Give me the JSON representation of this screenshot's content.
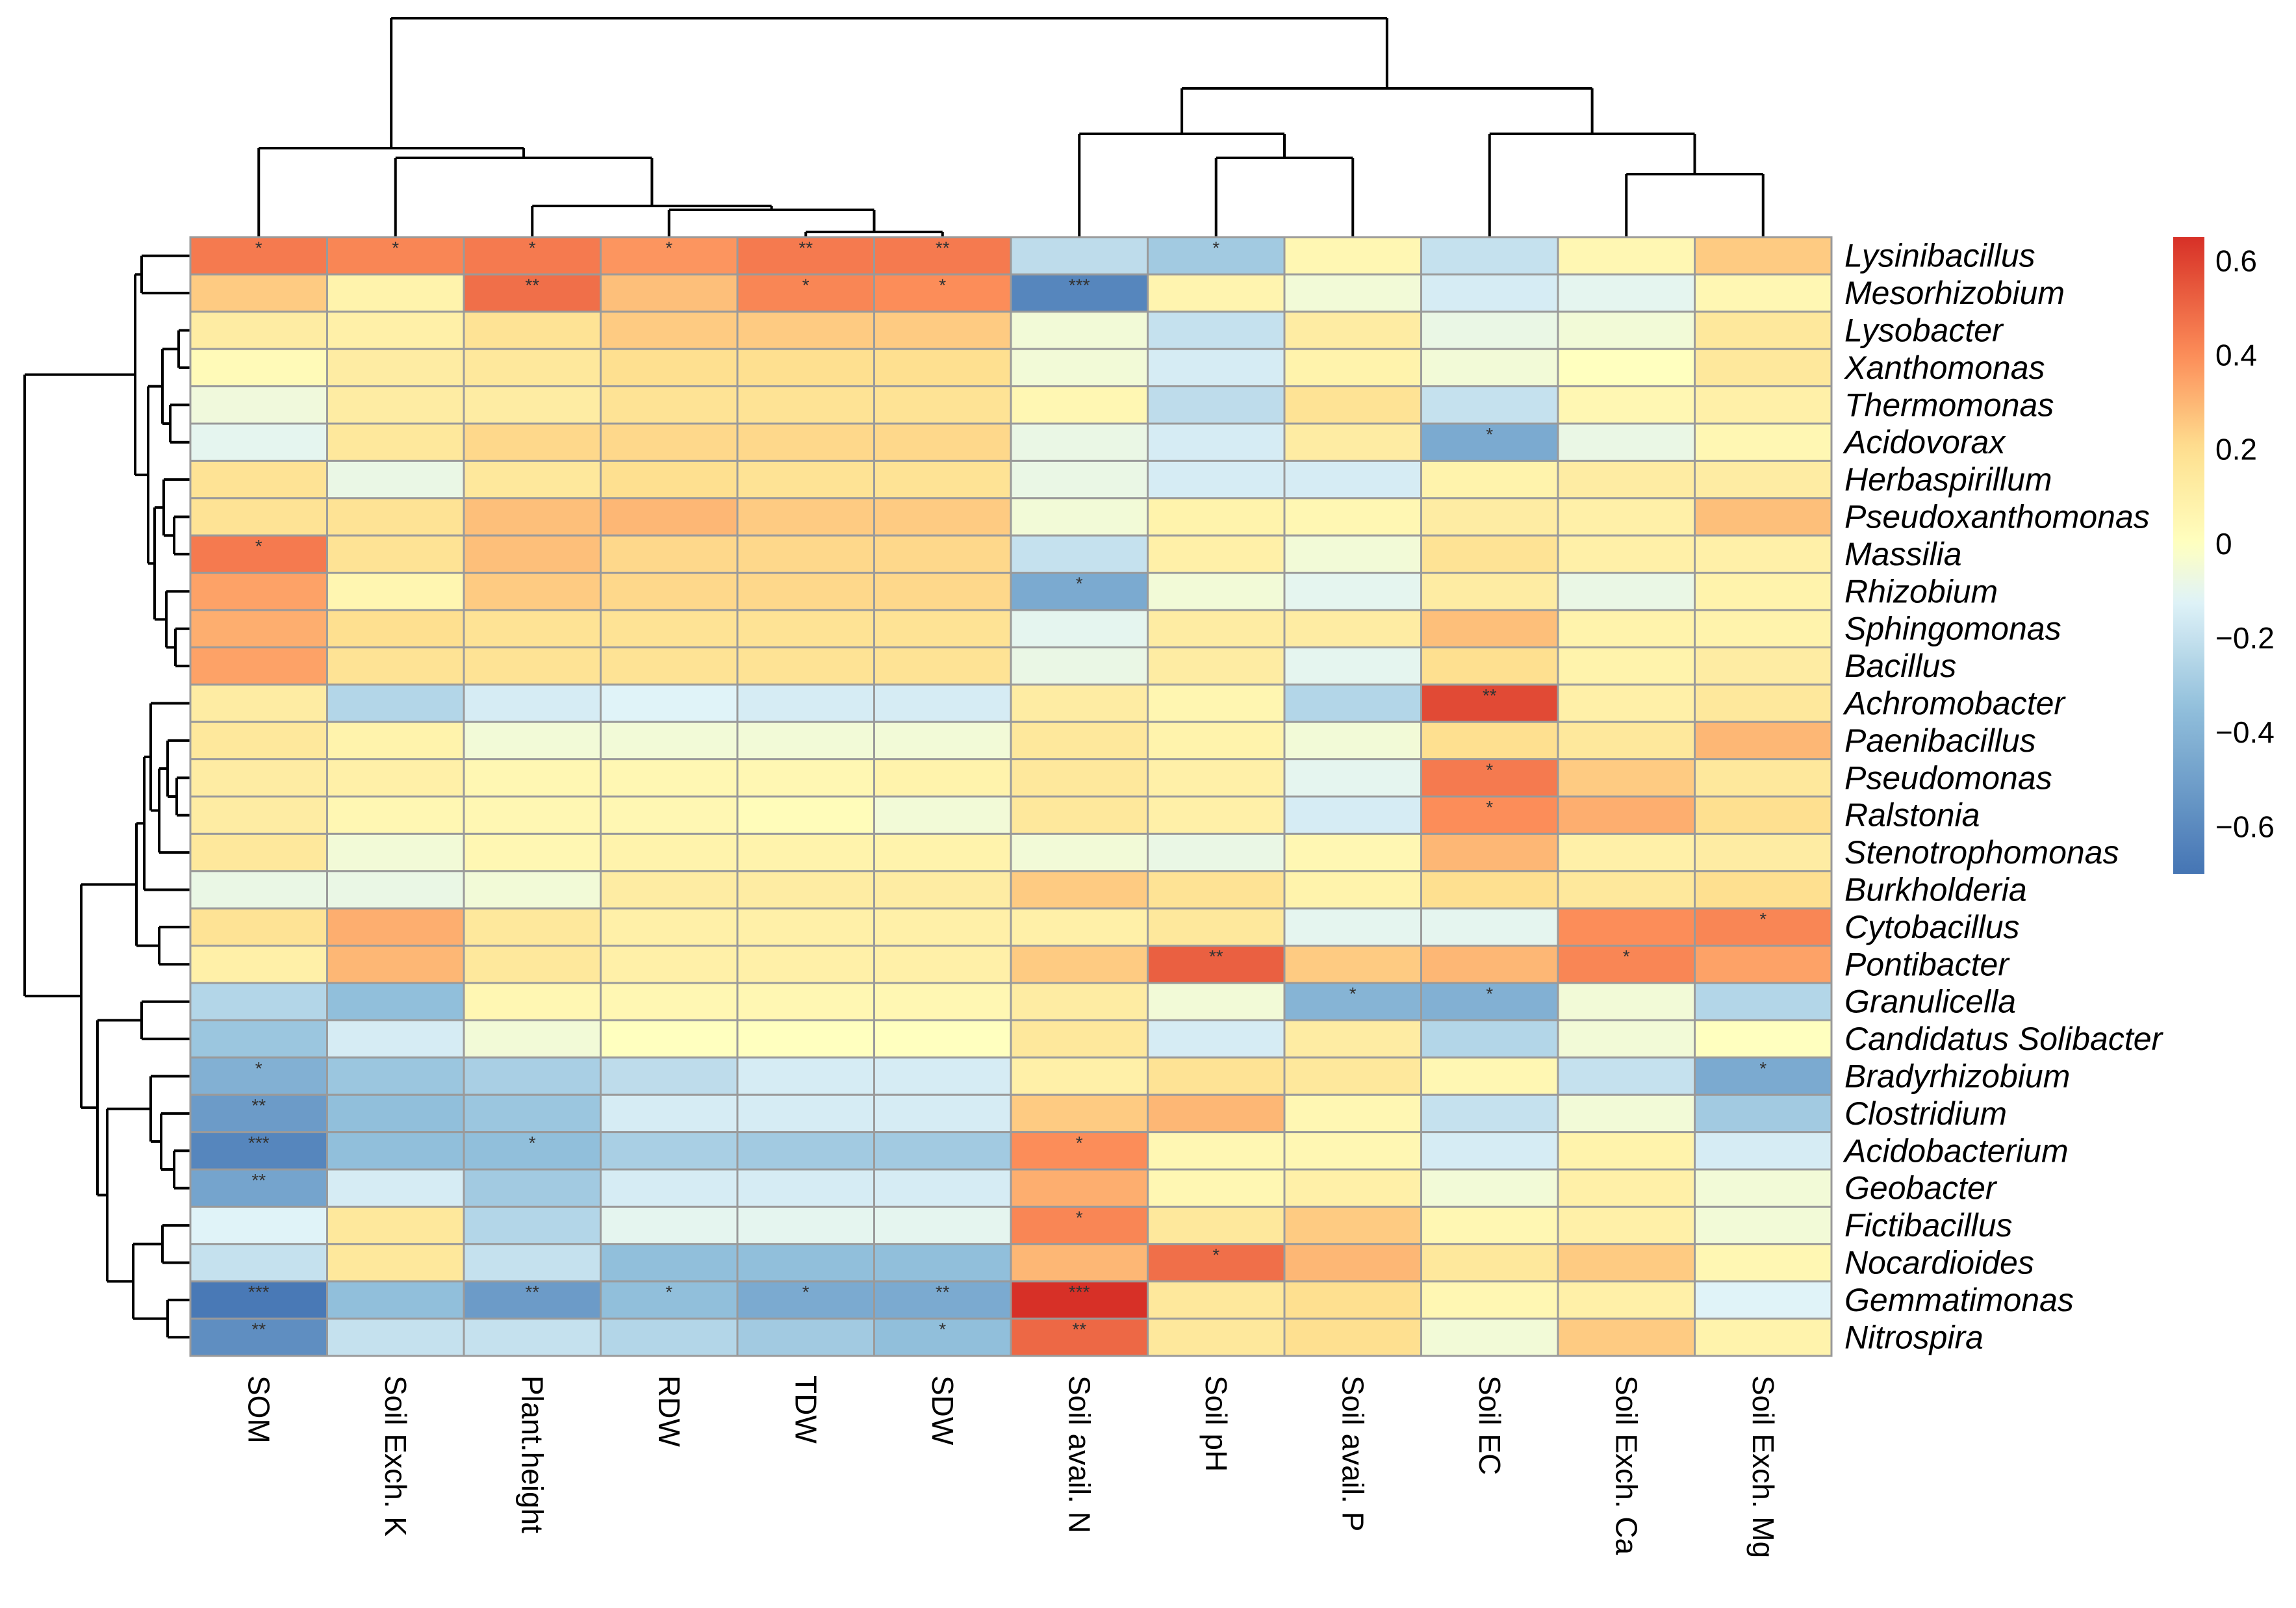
{
  "chart_data": {
    "type": "heatmap",
    "title": "",
    "columns": [
      "SOM",
      "Soil Exch. K",
      "Plant.height",
      "RDW",
      "TDW",
      "SDW",
      "Soil avail. N",
      "Soil pH",
      "Soil avail. P",
      "Soil EC",
      "Soil Exch. Ca",
      "Soil Exch. Mg"
    ],
    "rows": [
      "Lysinibacillus",
      "Mesorhizobium",
      "Lysobacter",
      "Xanthomonas",
      "Thermomonas",
      "Acidovorax",
      "Herbaspirillum",
      "Pseudoxanthomonas",
      "Massilia",
      "Rhizobium",
      "Sphingomonas",
      "Bacillus",
      "Achromobacter",
      "Paenibacillus",
      "Pseudomonas",
      "Ralstonia",
      "Stenotrophomonas",
      "Burkholderia",
      "Cytobacillus",
      "Pontibacter",
      "Granulicella",
      "Candidatus Solibacter",
      "Bradyrhizobium",
      "Clostridium",
      "Acidobacterium",
      "Geobacter",
      "Fictibacillus",
      "Nocardioides",
      "Gemmatimonas",
      "Nitrospira"
    ],
    "values": [
      [
        0.45,
        0.42,
        0.45,
        0.38,
        0.45,
        0.45,
        -0.22,
        -0.3,
        0.05,
        -0.2,
        0.05,
        0.25
      ],
      [
        0.25,
        0.08,
        0.48,
        0.28,
        0.42,
        0.4,
        -0.62,
        0.07,
        -0.05,
        -0.15,
        -0.1,
        0.05
      ],
      [
        0.12,
        0.1,
        0.18,
        0.25,
        0.25,
        0.25,
        -0.05,
        -0.2,
        0.12,
        -0.08,
        -0.05,
        0.15
      ],
      [
        0.03,
        0.12,
        0.15,
        0.2,
        0.2,
        0.2,
        -0.05,
        -0.15,
        0.08,
        -0.05,
        0.0,
        0.15
      ],
      [
        -0.06,
        0.12,
        0.12,
        0.18,
        0.18,
        0.18,
        0.05,
        -0.22,
        0.18,
        -0.2,
        0.05,
        0.1
      ],
      [
        -0.1,
        0.15,
        0.22,
        0.22,
        0.22,
        0.22,
        -0.08,
        -0.15,
        0.12,
        -0.45,
        -0.08,
        0.05
      ],
      [
        0.18,
        -0.08,
        0.15,
        0.2,
        0.18,
        0.18,
        -0.08,
        -0.15,
        -0.15,
        0.08,
        0.12,
        0.12
      ],
      [
        0.18,
        0.18,
        0.28,
        0.3,
        0.25,
        0.25,
        -0.05,
        0.08,
        0.05,
        0.12,
        0.1,
        0.28
      ],
      [
        0.45,
        0.18,
        0.28,
        0.22,
        0.22,
        0.22,
        -0.2,
        0.1,
        -0.05,
        0.18,
        0.1,
        0.1
      ],
      [
        0.35,
        0.06,
        0.25,
        0.22,
        0.22,
        0.22,
        -0.45,
        -0.05,
        -0.1,
        0.12,
        -0.08,
        0.08
      ],
      [
        0.32,
        0.2,
        0.18,
        0.18,
        0.18,
        0.18,
        -0.1,
        0.12,
        0.12,
        0.28,
        0.08,
        0.08
      ],
      [
        0.35,
        0.18,
        0.18,
        0.18,
        0.18,
        0.18,
        -0.08,
        0.12,
        -0.1,
        0.2,
        0.08,
        0.12
      ],
      [
        0.12,
        -0.25,
        -0.15,
        -0.12,
        -0.15,
        -0.15,
        0.12,
        0.06,
        -0.25,
        0.58,
        0.1,
        0.15
      ],
      [
        0.15,
        0.08,
        -0.05,
        -0.05,
        -0.05,
        -0.05,
        0.15,
        0.08,
        -0.05,
        0.2,
        0.15,
        0.3
      ],
      [
        0.12,
        0.1,
        0.05,
        0.05,
        0.05,
        0.08,
        0.15,
        0.1,
        -0.1,
        0.45,
        0.25,
        0.15
      ],
      [
        0.12,
        0.05,
        0.05,
        0.05,
        0.02,
        -0.05,
        0.15,
        0.1,
        -0.15,
        0.4,
        0.32,
        0.2
      ],
      [
        0.15,
        -0.05,
        0.05,
        0.08,
        0.08,
        0.08,
        -0.05,
        -0.08,
        0.05,
        0.3,
        0.1,
        0.12
      ],
      [
        -0.08,
        -0.08,
        -0.05,
        0.12,
        0.12,
        0.12,
        0.25,
        0.18,
        0.08,
        0.2,
        0.15,
        0.2
      ],
      [
        0.18,
        0.32,
        0.15,
        0.1,
        0.1,
        0.1,
        0.1,
        0.15,
        -0.1,
        -0.1,
        0.4,
        0.42
      ],
      [
        0.1,
        0.3,
        0.15,
        0.1,
        0.1,
        0.1,
        0.25,
        0.52,
        0.25,
        0.3,
        0.42,
        0.35
      ],
      [
        -0.25,
        -0.35,
        0.05,
        0.05,
        0.05,
        0.05,
        0.12,
        -0.05,
        -0.4,
        -0.42,
        -0.05,
        -0.25
      ],
      [
        -0.32,
        -0.15,
        -0.05,
        0.0,
        0.0,
        0.0,
        0.15,
        -0.15,
        0.12,
        -0.25,
        -0.05,
        0.0
      ],
      [
        -0.42,
        -0.32,
        -0.28,
        -0.22,
        -0.15,
        -0.15,
        0.1,
        0.18,
        0.15,
        0.05,
        -0.2,
        -0.45
      ],
      [
        -0.52,
        -0.35,
        -0.32,
        -0.15,
        -0.15,
        -0.15,
        0.25,
        0.3,
        0.05,
        -0.2,
        -0.05,
        -0.3
      ],
      [
        -0.62,
        -0.35,
        -0.35,
        -0.28,
        -0.3,
        -0.3,
        0.4,
        0.05,
        0.05,
        -0.15,
        0.08,
        -0.15
      ],
      [
        -0.48,
        -0.15,
        -0.3,
        -0.15,
        -0.15,
        -0.15,
        0.32,
        0.05,
        0.1,
        -0.05,
        0.1,
        -0.05
      ],
      [
        -0.12,
        0.15,
        -0.25,
        -0.1,
        -0.1,
        -0.1,
        0.42,
        0.15,
        0.25,
        0.05,
        0.1,
        -0.05
      ],
      [
        -0.2,
        0.15,
        -0.2,
        -0.35,
        -0.35,
        -0.35,
        0.3,
        0.48,
        0.3,
        0.15,
        0.25,
        0.05
      ],
      [
        -0.68,
        -0.35,
        -0.52,
        -0.35,
        -0.45,
        -0.45,
        0.65,
        0.15,
        0.2,
        0.05,
        0.1,
        -0.12
      ],
      [
        -0.58,
        -0.2,
        -0.2,
        -0.25,
        -0.3,
        -0.35,
        0.5,
        0.15,
        0.2,
        -0.05,
        0.25,
        0.08
      ]
    ],
    "significance": [
      [
        "*",
        "*",
        "*",
        "*",
        "**",
        "**",
        "",
        "*",
        "",
        "",
        "",
        ""
      ],
      [
        "",
        "",
        "**",
        "",
        "*",
        "*",
        "***",
        "",
        "",
        "",
        "",
        ""
      ],
      [
        "",
        "",
        "",
        "",
        "",
        "",
        "",
        "",
        "",
        "",
        "",
        ""
      ],
      [
        "",
        "",
        "",
        "",
        "",
        "",
        "",
        "",
        "",
        "",
        "",
        ""
      ],
      [
        "",
        "",
        "",
        "",
        "",
        "",
        "",
        "",
        "",
        "",
        "",
        ""
      ],
      [
        "",
        "",
        "",
        "",
        "",
        "",
        "",
        "",
        "",
        "*",
        "",
        ""
      ],
      [
        "",
        "",
        "",
        "",
        "",
        "",
        "",
        "",
        "",
        "",
        "",
        ""
      ],
      [
        "",
        "",
        "",
        "",
        "",
        "",
        "",
        "",
        "",
        "",
        "",
        ""
      ],
      [
        "*",
        "",
        "",
        "",
        "",
        "",
        "",
        "",
        "",
        "",
        "",
        ""
      ],
      [
        "",
        "",
        "",
        "",
        "",
        "",
        "*",
        "",
        "",
        "",
        "",
        ""
      ],
      [
        "",
        "",
        "",
        "",
        "",
        "",
        "",
        "",
        "",
        "",
        "",
        ""
      ],
      [
        "",
        "",
        "",
        "",
        "",
        "",
        "",
        "",
        "",
        "",
        "",
        ""
      ],
      [
        "",
        "",
        "",
        "",
        "",
        "",
        "",
        "",
        "",
        "**",
        "",
        ""
      ],
      [
        "",
        "",
        "",
        "",
        "",
        "",
        "",
        "",
        "",
        "",
        "",
        ""
      ],
      [
        "",
        "",
        "",
        "",
        "",
        "",
        "",
        "",
        "",
        "*",
        "",
        ""
      ],
      [
        "",
        "",
        "",
        "",
        "",
        "",
        "",
        "",
        "",
        "*",
        "",
        ""
      ],
      [
        "",
        "",
        "",
        "",
        "",
        "",
        "",
        "",
        "",
        "",
        "",
        ""
      ],
      [
        "",
        "",
        "",
        "",
        "",
        "",
        "",
        "",
        "",
        "",
        "",
        ""
      ],
      [
        "",
        "",
        "",
        "",
        "",
        "",
        "",
        "",
        "",
        "",
        "",
        "*"
      ],
      [
        "",
        "",
        "",
        "",
        "",
        "",
        "",
        "**",
        "",
        "",
        "*",
        ""
      ],
      [
        "",
        "",
        "",
        "",
        "",
        "",
        "",
        "",
        "*",
        "*",
        "",
        ""
      ],
      [
        "",
        "",
        "",
        "",
        "",
        "",
        "",
        "",
        "",
        "",
        "",
        ""
      ],
      [
        "*",
        "",
        "",
        "",
        "",
        "",
        "",
        "",
        "",
        "",
        "",
        "*"
      ],
      [
        "**",
        "",
        "",
        "",
        "",
        "",
        "",
        "",
        "",
        "",
        "",
        ""
      ],
      [
        "***",
        "",
        "*",
        "",
        "",
        "",
        "*",
        "",
        "",
        "",
        "",
        ""
      ],
      [
        "**",
        "",
        "",
        "",
        "",
        "",
        "",
        "",
        "",
        "",
        "",
        ""
      ],
      [
        "",
        "",
        "",
        "",
        "",
        "",
        "*",
        "",
        "",
        "",
        "",
        ""
      ],
      [
        "",
        "",
        "",
        "",
        "",
        "",
        "",
        "*",
        "",
        "",
        "",
        ""
      ],
      [
        "***",
        "",
        "**",
        "*",
        "*",
        "**",
        "***",
        "",
        "",
        "",
        "",
        ""
      ],
      [
        "**",
        "",
        "",
        "",
        "",
        "*",
        "**",
        "",
        "",
        "",
        "",
        ""
      ]
    ],
    "color_scale": {
      "min": -0.7,
      "max": 0.65,
      "stops": [
        {
          "v": -0.7,
          "color": "#4575b4"
        },
        {
          "v": -0.35,
          "color": "#91bfdb"
        },
        {
          "v": -0.12,
          "color": "#e0f3f8"
        },
        {
          "v": 0.0,
          "color": "#ffffbf"
        },
        {
          "v": 0.2,
          "color": "#fee090"
        },
        {
          "v": 0.4,
          "color": "#fc8d59"
        },
        {
          "v": 0.65,
          "color": "#d73027"
        }
      ]
    },
    "legend_ticks": [
      {
        "value": 0.6,
        "label": "0.6"
      },
      {
        "value": 0.4,
        "label": "0.4"
      },
      {
        "value": 0.2,
        "label": "0.2"
      },
      {
        "value": 0.0,
        "label": "0"
      },
      {
        "value": -0.2,
        "label": "−0.2"
      },
      {
        "value": -0.4,
        "label": "−0.4"
      },
      {
        "value": -0.6,
        "label": "−0.6"
      }
    ],
    "column_dendrogram": "((SOM,(Soil Exch. K,(Plant.height,(RDW,(TDW,SDW))))),((Soil avail. N,(Soil pH,Soil avail. P)),(Soil EC,(Soil Exch. Ca,Soil Exch. Mg))))",
    "row_dendrogram": "grouped hierarchical clustering of 30 genera"
  }
}
